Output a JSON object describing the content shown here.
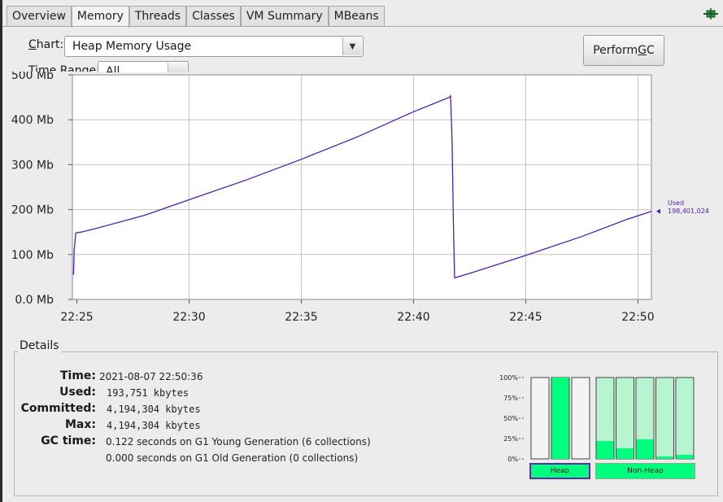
{
  "tabs": [
    "Overview",
    "Memory",
    "Threads",
    "Classes",
    "VM Summary",
    "MBeans"
  ],
  "active_tab": "Memory",
  "plugin_icon": "plugin-icon",
  "chart_select": {
    "label_prefix": "C",
    "label_rest": "hart:",
    "value": "Heap Memory Usage"
  },
  "time_range": {
    "label": "Time Range:",
    "value": "All"
  },
  "perform_gc": {
    "label_prefix": "Perform ",
    "label_underlined": "G",
    "label_rest": "C"
  },
  "colors": {
    "line": "#4b1fa6",
    "bar_fill": "#00ff7f",
    "bar_empty": "#b6f5cf"
  },
  "chart_data": {
    "type": "line",
    "series": [
      {
        "name": "Used",
        "value_label": "198,401,024"
      }
    ],
    "y_ticks": [
      "500 Mb",
      "400 Mb",
      "300 Mb",
      "200 Mb",
      "100 Mb",
      "0.0 Mb"
    ],
    "ylim_mb": [
      0,
      500
    ],
    "x_ticks": [
      "22:25",
      "22:30",
      "22:35",
      "22:40",
      "22:45",
      "22:50"
    ],
    "x_minutes": [
      0,
      5,
      10,
      15,
      20,
      25
    ],
    "xlim_minutes": [
      -0.2,
      25.6
    ],
    "points": [
      {
        "x": -0.15,
        "y": 55
      },
      {
        "x": -0.12,
        "y": 110
      },
      {
        "x": -0.08,
        "y": 130
      },
      {
        "x": -0.05,
        "y": 148
      },
      {
        "x": 0.2,
        "y": 150
      },
      {
        "x": 1.0,
        "y": 160
      },
      {
        "x": 3.0,
        "y": 187
      },
      {
        "x": 5.0,
        "y": 222
      },
      {
        "x": 7.5,
        "y": 265
      },
      {
        "x": 10.0,
        "y": 312
      },
      {
        "x": 12.5,
        "y": 362
      },
      {
        "x": 15.0,
        "y": 418
      },
      {
        "x": 16.6,
        "y": 450
      },
      {
        "x": 16.65,
        "y": 453
      },
      {
        "x": 16.72,
        "y": 350
      },
      {
        "x": 16.78,
        "y": 160
      },
      {
        "x": 16.83,
        "y": 48
      },
      {
        "x": 17.5,
        "y": 58
      },
      {
        "x": 20.0,
        "y": 98
      },
      {
        "x": 22.5,
        "y": 140
      },
      {
        "x": 24.5,
        "y": 178
      },
      {
        "x": 25.6,
        "y": 196
      }
    ],
    "grid": true
  },
  "details": {
    "legend": "Details",
    "time_label": "Time:",
    "time_value": "2021-08-07 22:50:36",
    "used_label": "Used:",
    "used_value": "193,751 kbytes",
    "committed_label": "Committed:",
    "committed_value": "4,194,304 kbytes",
    "max_label": "Max:",
    "max_value": "4,194,304 kbytes",
    "gc_label": "GC time:",
    "gc_lines": [
      "0.122  seconds on G1 Young Generation (6 collections)",
      "0.000  seconds on G1 Old Generation (0 collections)"
    ]
  },
  "pools": {
    "y_ticks": [
      "100%",
      "75%",
      "50%",
      "25%",
      "0%"
    ],
    "heap_label": "Heap",
    "nonheap_label": "Non-Heap",
    "heap_levels": [
      0.0,
      1.0,
      0.0
    ],
    "nonheap_levels": [
      0.22,
      0.13,
      0.24,
      0.03,
      0.05
    ]
  }
}
